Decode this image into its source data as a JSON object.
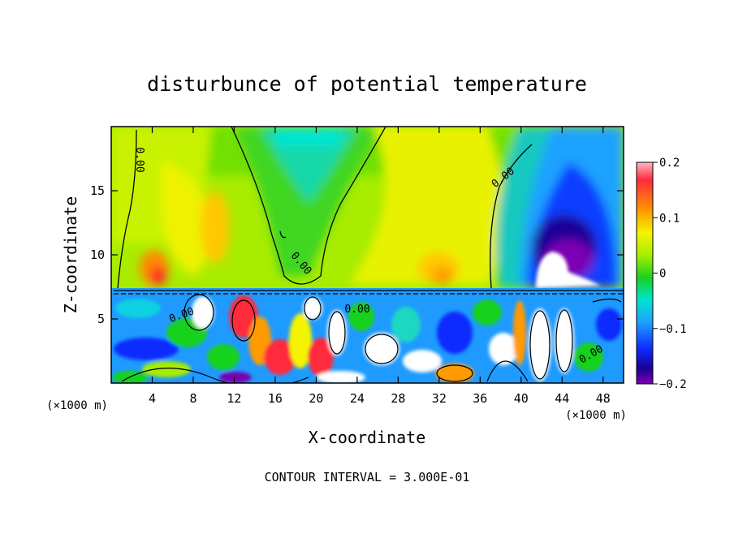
{
  "chart_data": {
    "type": "heatmap",
    "title": "disturbunce of potential temperature",
    "xlabel": "X-coordinate",
    "ylabel": "Z-coordinate",
    "x_unit_note": "(×1000 m)",
    "y_unit_note": "(×1000 m)",
    "footer": "CONTOUR INTERVAL = 3.000E-01",
    "xlim": [
      0,
      50
    ],
    "ylim": [
      0,
      20
    ],
    "x_ticks": [
      4,
      8,
      12,
      16,
      20,
      24,
      28,
      32,
      36,
      40,
      44,
      48
    ],
    "y_ticks": [
      5,
      10,
      15
    ],
    "colorbar": {
      "range": [
        -0.2,
        0.2
      ],
      "tick_labels": [
        "0.2",
        "0.1",
        "0",
        "−0.1",
        "−0.2"
      ],
      "tick_values": [
        0.2,
        0.1,
        0,
        -0.1,
        -0.2
      ]
    },
    "contour_labels": [
      "0.00",
      "0.00",
      "0.00",
      "0.00",
      "0.00",
      "0.00"
    ]
  }
}
